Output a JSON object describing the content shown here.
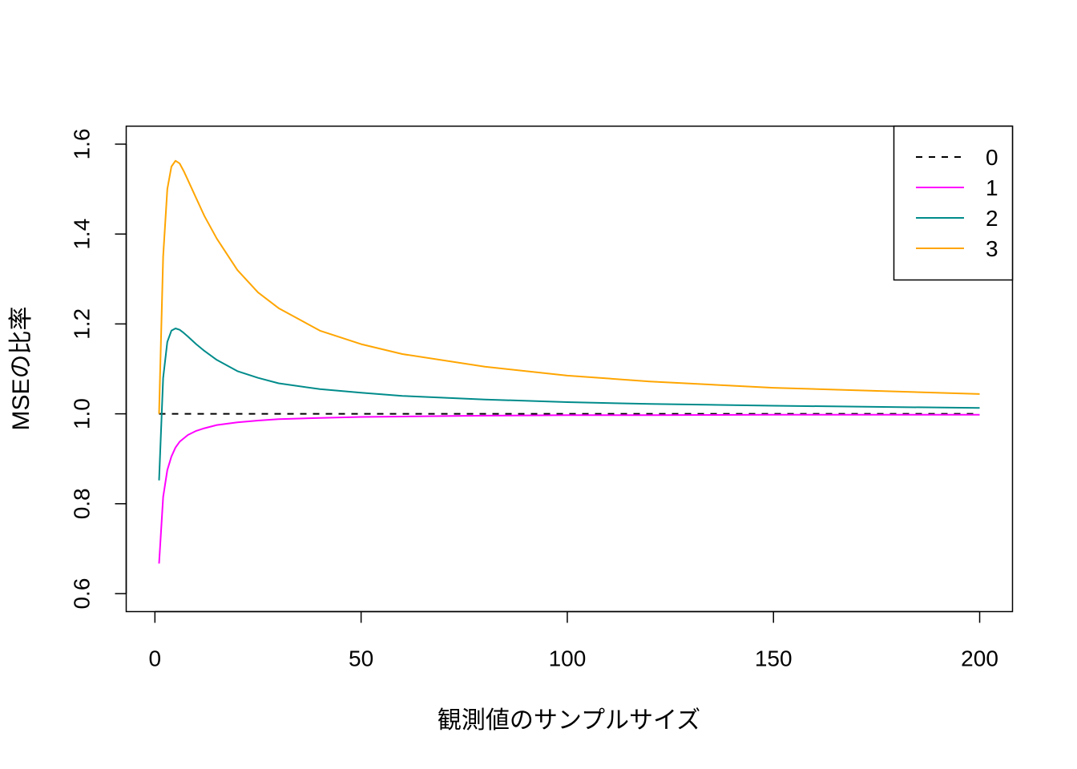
{
  "chart_data": {
    "type": "line",
    "title": "",
    "xlabel": "観測値のサンプルサイズ",
    "ylabel": "MSEの比率",
    "xlim": [
      1,
      200
    ],
    "ylim": [
      0.6,
      1.6
    ],
    "x_ticks": [
      0,
      50,
      100,
      150,
      200
    ],
    "y_ticks": [
      0.6,
      0.8,
      1.0,
      1.2,
      1.4,
      1.6
    ],
    "x_tick_labels": [
      "0",
      "50",
      "100",
      "150",
      "200"
    ],
    "y_tick_labels": [
      "0.6",
      "0.8",
      "1.0",
      "1.2",
      "1.4",
      "1.6"
    ],
    "grid": false,
    "legend": {
      "position": "top-right"
    },
    "series": [
      {
        "name": "0",
        "color": "#000000",
        "dash": true,
        "x": [
          1,
          200
        ],
        "y": [
          1.0,
          1.0
        ]
      },
      {
        "name": "1",
        "color": "#ff00ff",
        "dash": false,
        "x": [
          1,
          2,
          3,
          4,
          5,
          6,
          8,
          10,
          12,
          15,
          20,
          25,
          30,
          40,
          50,
          60,
          80,
          100,
          120,
          150,
          200
        ],
        "y": [
          0.667,
          0.815,
          0.875,
          0.905,
          0.925,
          0.938,
          0.953,
          0.962,
          0.968,
          0.975,
          0.981,
          0.985,
          0.988,
          0.991,
          0.993,
          0.994,
          0.996,
          0.997,
          0.997,
          0.998,
          0.998
        ]
      },
      {
        "name": "2",
        "color": "#008b8b",
        "dash": false,
        "x": [
          1,
          2,
          3,
          4,
          5,
          6,
          7,
          8,
          10,
          12,
          15,
          20,
          25,
          30,
          40,
          50,
          60,
          80,
          100,
          120,
          150,
          200
        ],
        "y": [
          0.852,
          1.08,
          1.16,
          1.185,
          1.19,
          1.187,
          1.18,
          1.172,
          1.155,
          1.14,
          1.12,
          1.095,
          1.08,
          1.068,
          1.055,
          1.047,
          1.04,
          1.032,
          1.026,
          1.022,
          1.018,
          1.013
        ]
      },
      {
        "name": "3",
        "color": "#ffa500",
        "dash": false,
        "x": [
          1,
          2,
          3,
          4,
          5,
          6,
          7,
          8,
          10,
          12,
          15,
          20,
          25,
          30,
          40,
          50,
          60,
          80,
          100,
          120,
          150,
          200
        ],
        "y": [
          1.0,
          1.35,
          1.5,
          1.55,
          1.563,
          1.557,
          1.54,
          1.52,
          1.48,
          1.44,
          1.39,
          1.32,
          1.27,
          1.235,
          1.185,
          1.155,
          1.133,
          1.105,
          1.085,
          1.072,
          1.058,
          1.044
        ]
      }
    ]
  }
}
